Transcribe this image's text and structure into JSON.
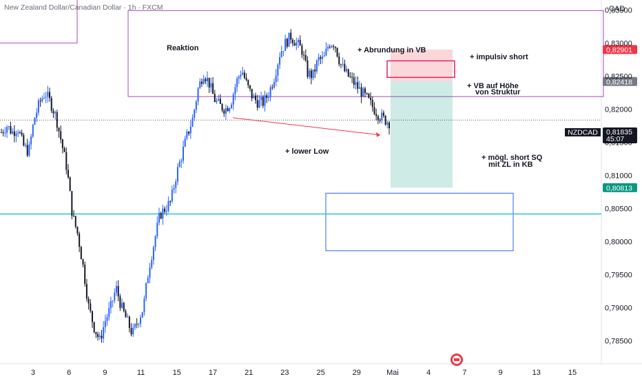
{
  "chart_data": {
    "type": "candlestick",
    "title": "New Zealand Dollar/Canadian Dollar · 1h · FXCM",
    "currency": "CAD",
    "symbol": "NZDCAD",
    "ylim": [
      0.7815,
      0.8365
    ],
    "y_ticks": [
      "0,83500",
      "0,83000",
      "0,82500",
      "0,82000",
      "0,81500",
      "0,81000",
      "0,80500",
      "0,80000",
      "0,79500",
      "0,79000",
      "0,78500"
    ],
    "y_tick_values": [
      0.835,
      0.83,
      0.825,
      0.82,
      0.815,
      0.81,
      0.805,
      0.8,
      0.795,
      0.79,
      0.785
    ],
    "x_ticks": [
      "3",
      "6",
      "9",
      "11",
      "15",
      "17",
      "21",
      "23",
      "25",
      "29",
      "Mai",
      "4",
      "7",
      "9",
      "13",
      "15"
    ],
    "price_badges": [
      {
        "label": "0,82901",
        "value": 0.82901,
        "color": "#f23645"
      },
      {
        "label": "0,82418",
        "value": 0.82418,
        "color": "#787b86"
      },
      {
        "label": "0,80813",
        "value": 0.80813,
        "color": "#089981"
      }
    ],
    "current_price": {
      "label": "0,81835",
      "value": 0.81835,
      "countdown": "45:07"
    },
    "horizontal_line": {
      "value": 0.80415,
      "color": "#26c6da"
    },
    "zones": [
      {
        "name": "reaction-zone",
        "from": 0.8219,
        "to": 0.8349,
        "color": "#ab47bc"
      },
      {
        "name": "entry-zone",
        "from": 0.8248,
        "to": 0.8273,
        "color": "#e91e63"
      },
      {
        "name": "target-zone",
        "from": 0.7986,
        "to": 0.8073,
        "color": "#2962ff"
      }
    ],
    "position": {
      "type": "short",
      "stop": 0.82901,
      "entry": 0.82418,
      "target": 0.80813
    },
    "annotations": [
      "Reaktion",
      "+ Abrundung in VB",
      "+ impulsiv short",
      "+ VB auf Höhe",
      "von Struktur",
      "+ lower Low",
      "+ mögl. short SQ",
      "mit ZL in KB"
    ],
    "series_path": [
      0.8165,
      0.8175,
      0.8165,
      0.8172,
      0.8145,
      0.8135,
      0.8185,
      0.821,
      0.8225,
      0.821,
      0.8188,
      0.815,
      0.811,
      0.804,
      0.801,
      0.796,
      0.79,
      0.787,
      0.785,
      0.788,
      0.79,
      0.793,
      0.79,
      0.788,
      0.786,
      0.788,
      0.79,
      0.796,
      0.8,
      0.804,
      0.805,
      0.806,
      0.81,
      0.813,
      0.816,
      0.8185,
      0.823,
      0.8255,
      0.824,
      0.8215,
      0.8205,
      0.82,
      0.821,
      0.824,
      0.826,
      0.8235,
      0.8218,
      0.821,
      0.821,
      0.8225,
      0.825,
      0.8285,
      0.83,
      0.831,
      0.83,
      0.829,
      0.8255,
      0.825,
      0.8275,
      0.8275,
      0.83,
      0.83,
      0.827,
      0.8255,
      0.8245,
      0.8235,
      0.8225,
      0.8215,
      0.8203,
      0.8192,
      0.8185,
      0.818
    ]
  }
}
